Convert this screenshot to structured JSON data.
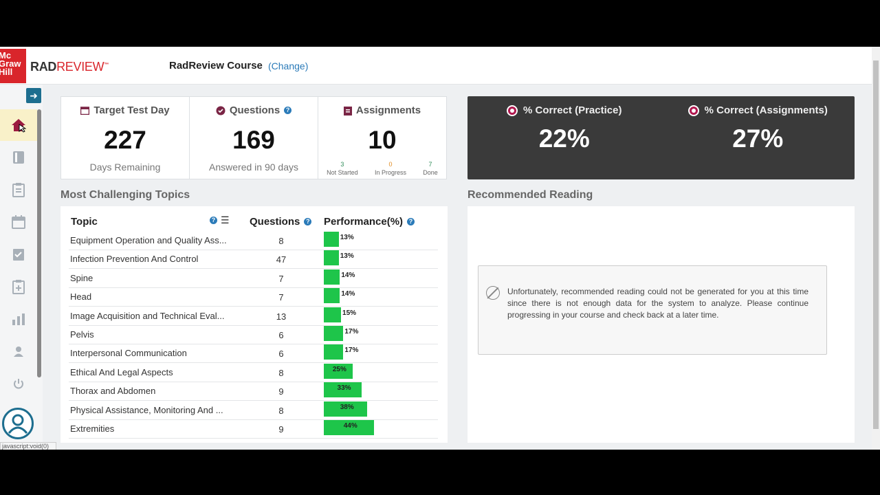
{
  "header": {
    "logo_lines": [
      "Mc",
      "Graw",
      "Hill"
    ],
    "brand_rad": "RAD",
    "brand_review": "REVIEW",
    "course_title": "RadReview Course",
    "change_link": "(Change)"
  },
  "sidebar": {
    "items": [
      "home-icon",
      "book-icon",
      "clipboard-icon",
      "calendar-icon",
      "checklist-icon",
      "add-clipboard-icon",
      "bar-chart-icon",
      "user-icon",
      "power-icon"
    ],
    "active": "home-icon",
    "status_text": "javascript:void(0)"
  },
  "stats": {
    "target": {
      "title": "Target Test Day",
      "value": "227",
      "sub": "Days Remaining"
    },
    "questions": {
      "title": "Questions",
      "value": "169",
      "sub": "Answered in 90 days"
    },
    "assignments": {
      "title": "Assignments",
      "value": "10",
      "breakdown": [
        {
          "count": "3",
          "label": "Not Started",
          "color": "#2e8b57"
        },
        {
          "count": "0",
          "label": "In Progress",
          "color": "#e08a1e"
        },
        {
          "count": "7",
          "label": "Done",
          "color": "#2e8b57"
        }
      ]
    }
  },
  "correct": {
    "practice": {
      "title": "% Correct (Practice)",
      "value": "22%"
    },
    "assignments": {
      "title": "% Correct (Assignments)",
      "value": "27%"
    }
  },
  "topics": {
    "section_title": "Most Challenging Topics",
    "headers": {
      "topic": "Topic",
      "questions": "Questions",
      "performance": "Performance(%)"
    },
    "rows": [
      {
        "topic": "Equipment Operation and Quality Ass...",
        "questions": "8",
        "performance": 13,
        "label": "13%"
      },
      {
        "topic": "Infection Prevention And Control",
        "questions": "47",
        "performance": 13,
        "label": "13%"
      },
      {
        "topic": "Spine",
        "questions": "7",
        "performance": 14,
        "label": "14%"
      },
      {
        "topic": "Head",
        "questions": "7",
        "performance": 14,
        "label": "14%"
      },
      {
        "topic": "Image Acquisition and Technical Eval...",
        "questions": "13",
        "performance": 15,
        "label": "15%"
      },
      {
        "topic": "Pelvis",
        "questions": "6",
        "performance": 17,
        "label": "17%"
      },
      {
        "topic": "Interpersonal Communication",
        "questions": "6",
        "performance": 17,
        "label": "17%"
      },
      {
        "topic": "Ethical And Legal Aspects",
        "questions": "8",
        "performance": 25,
        "label": "25%"
      },
      {
        "topic": "Thorax and Abdomen",
        "questions": "9",
        "performance": 33,
        "label": "33%"
      },
      {
        "topic": "Physical Assistance, Monitoring And ...",
        "questions": "8",
        "performance": 38,
        "label": "38%"
      },
      {
        "topic": "Extremities",
        "questions": "9",
        "performance": 44,
        "label": "44%"
      }
    ]
  },
  "reading": {
    "section_title": "Recommended Reading",
    "message": "Unfortunately, recommended reading could not be generated for you at this time since there is not enough data for the system to analyze. Please continue progressing in your course and check back at a later time."
  }
}
